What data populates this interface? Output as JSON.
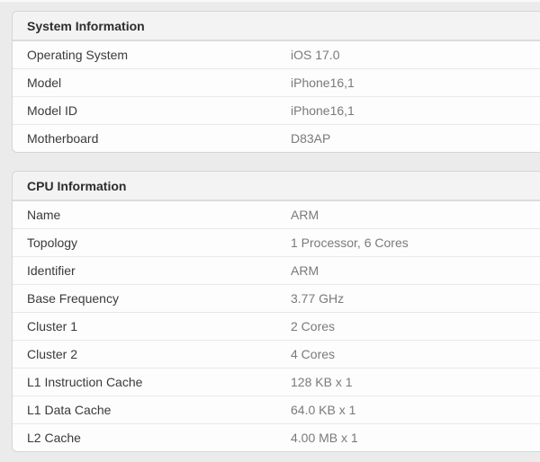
{
  "colors": {
    "page_background": "#ebebeb",
    "card_background": "#fdfdfd",
    "card_border": "#d6d6d6",
    "header_background": "#f3f3f3",
    "label_text": "#3a3a3a",
    "value_text": "#7a7a7a",
    "header_text": "#2d2d2d"
  },
  "tables": [
    {
      "title": "System Information",
      "rows": [
        {
          "label": "Operating System",
          "value": "iOS 17.0"
        },
        {
          "label": "Model",
          "value": "iPhone16,1"
        },
        {
          "label": "Model ID",
          "value": "iPhone16,1"
        },
        {
          "label": "Motherboard",
          "value": "D83AP"
        }
      ]
    },
    {
      "title": "CPU Information",
      "rows": [
        {
          "label": "Name",
          "value": "ARM"
        },
        {
          "label": "Topology",
          "value": "1 Processor, 6 Cores"
        },
        {
          "label": "Identifier",
          "value": "ARM"
        },
        {
          "label": "Base Frequency",
          "value": "3.77 GHz"
        },
        {
          "label": "Cluster 1",
          "value": "2 Cores"
        },
        {
          "label": "Cluster 2",
          "value": "4 Cores"
        },
        {
          "label": "L1 Instruction Cache",
          "value": "128 KB x 1"
        },
        {
          "label": "L1 Data Cache",
          "value": "64.0 KB x 1"
        },
        {
          "label": "L2 Cache",
          "value": "4.00 MB x 1"
        }
      ]
    }
  ]
}
